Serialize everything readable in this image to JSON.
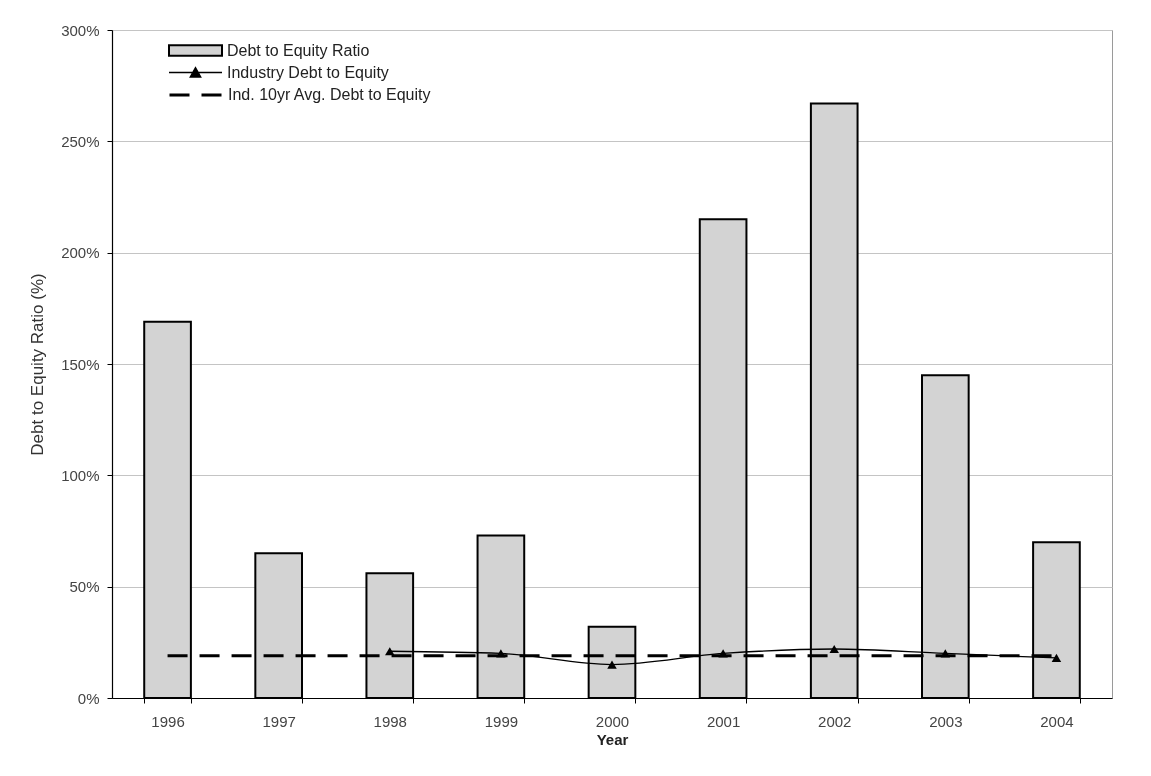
{
  "chart_data": {
    "type": "bar",
    "xlabel": "Year",
    "ylabel": "Debt to Equity Ratio (%)",
    "categories": [
      "1996",
      "1997",
      "1998",
      "1999",
      "2000",
      "2001",
      "2002",
      "2003",
      "2004"
    ],
    "series": [
      {
        "name": "Debt to Equity Ratio",
        "color": "#d3d3d3",
        "values": [
          169,
          65,
          56,
          73,
          32,
          215,
          267,
          145,
          70
        ]
      },
      {
        "name": "Industry Debt to Equity",
        "type": "line",
        "color": "#000000",
        "marker": "triangle",
        "line_style": "solid",
        "values": [
          null,
          null,
          21,
          20,
          15,
          20,
          22,
          20,
          18
        ]
      },
      {
        "name": "Ind. 10yr Avg. Debt to Equity",
        "type": "line",
        "color": "#000000",
        "marker": "none",
        "line_style": "dashed",
        "values": [
          19,
          19,
          19,
          19,
          19,
          19,
          19,
          19,
          19
        ]
      }
    ],
    "ylim": [
      0,
      300
    ],
    "yticks": [
      {
        "value": 0,
        "label": "0%"
      },
      {
        "value": 50,
        "label": "50%"
      },
      {
        "value": 100,
        "label": "100%"
      },
      {
        "value": 150,
        "label": "150%"
      },
      {
        "value": 200,
        "label": "200%"
      },
      {
        "value": 250,
        "label": "250%"
      },
      {
        "value": 300,
        "label": "300%"
      }
    ],
    "grid": "y",
    "legend": "top left"
  }
}
